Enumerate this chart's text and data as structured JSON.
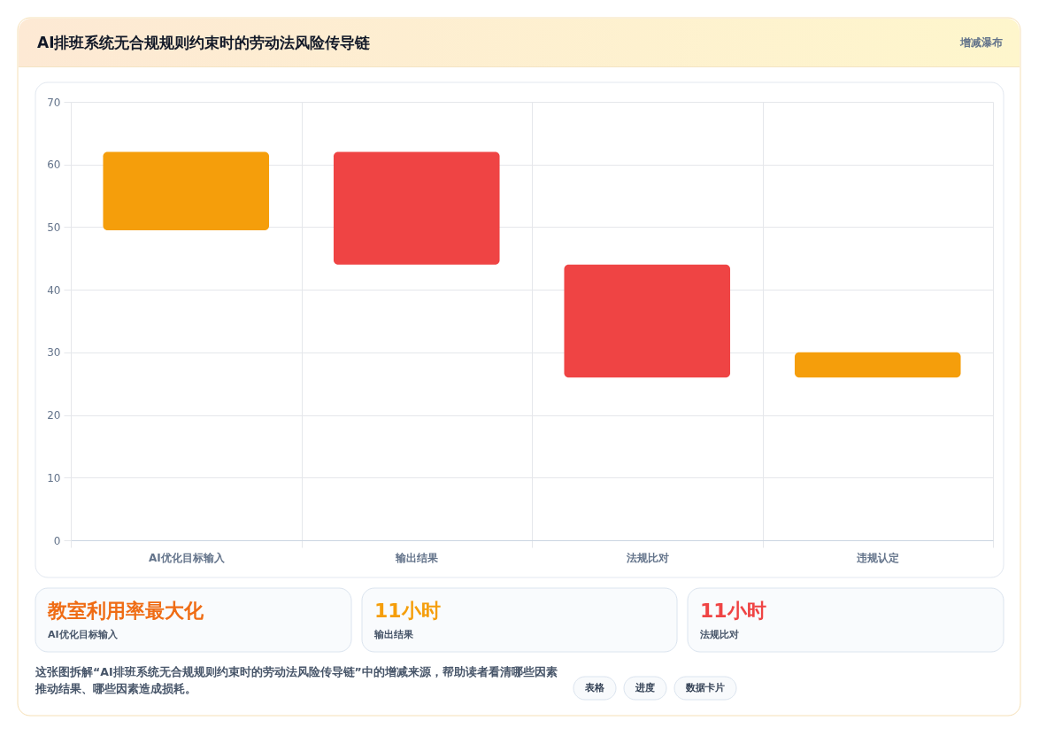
{
  "chart_data": {
    "type": "bar",
    "title": "AI排班系统无合规规则约束时的劳动法风险传导链",
    "subtitle": "增减瀑布",
    "categories": [
      "AI优化目标输入",
      "输出结果",
      "法规比对",
      "违规认定"
    ],
    "base": [
      49.5,
      62,
      44,
      26
    ],
    "values": [
      12.5,
      -18,
      -18,
      4
    ],
    "colors": [
      "#f59e0b",
      "#ef4444",
      "#ef4444",
      "#f59e0b"
    ],
    "ylim": [
      0,
      70
    ],
    "yticks": [
      0,
      10,
      20,
      30,
      40,
      50,
      60,
      70
    ],
    "grid": true,
    "annotations": [
      "教室利用率最大化",
      "AI优化目标输入",
      "11小时",
      "输出结果",
      "11小时",
      "法规比对",
      "这张图拆解“AI排班系统无合规规则约束时的劳动法风险传导链”中的增减来源，帮助读者看清哪些因素推动结果、哪些因素造成损耗。",
      "表格",
      "进度",
      "数据卡片"
    ]
  }
}
